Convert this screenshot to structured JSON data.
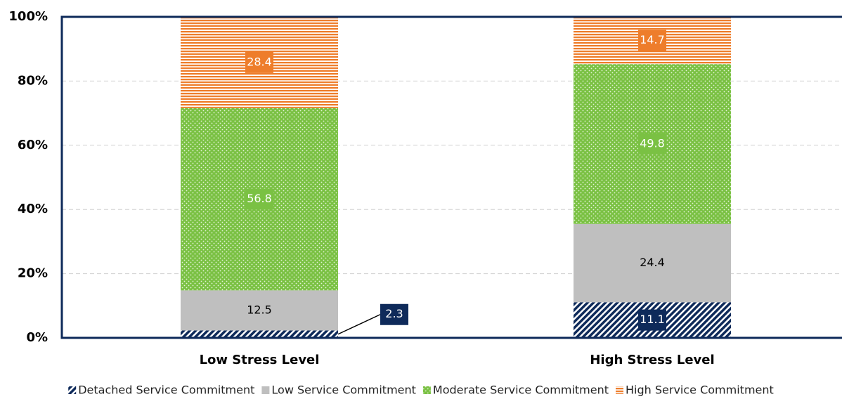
{
  "chart_data": {
    "type": "stacked_bar",
    "categories": [
      "Low Stress Level",
      "High Stress Level"
    ],
    "series": [
      {
        "name": "Detached Service Commitment",
        "color": "#0e2a5a",
        "pattern": "diagonal",
        "values": [
          2.3,
          11.1
        ]
      },
      {
        "name": "Low Service Commitment",
        "color": "#bfbfbf",
        "pattern": "solid",
        "values": [
          12.5,
          24.4
        ]
      },
      {
        "name": "Moderate Service Commitment",
        "color": "#7ac143",
        "pattern": "dots",
        "values": [
          56.8,
          49.8
        ]
      },
      {
        "name": "High Service Commitment",
        "color": "#ee7d2b",
        "pattern": "horizontal",
        "values": [
          28.4,
          14.7
        ]
      }
    ],
    "ylim": [
      0,
      100
    ],
    "yticks": [
      {
        "value": 0,
        "label": "0%"
      },
      {
        "value": 20,
        "label": "20%"
      },
      {
        "value": 40,
        "label": "40%"
      },
      {
        "value": 60,
        "label": "60%"
      },
      {
        "value": 80,
        "label": "80%"
      },
      {
        "value": 100,
        "label": "100%"
      }
    ],
    "grid": true,
    "legend": "bottom"
  }
}
